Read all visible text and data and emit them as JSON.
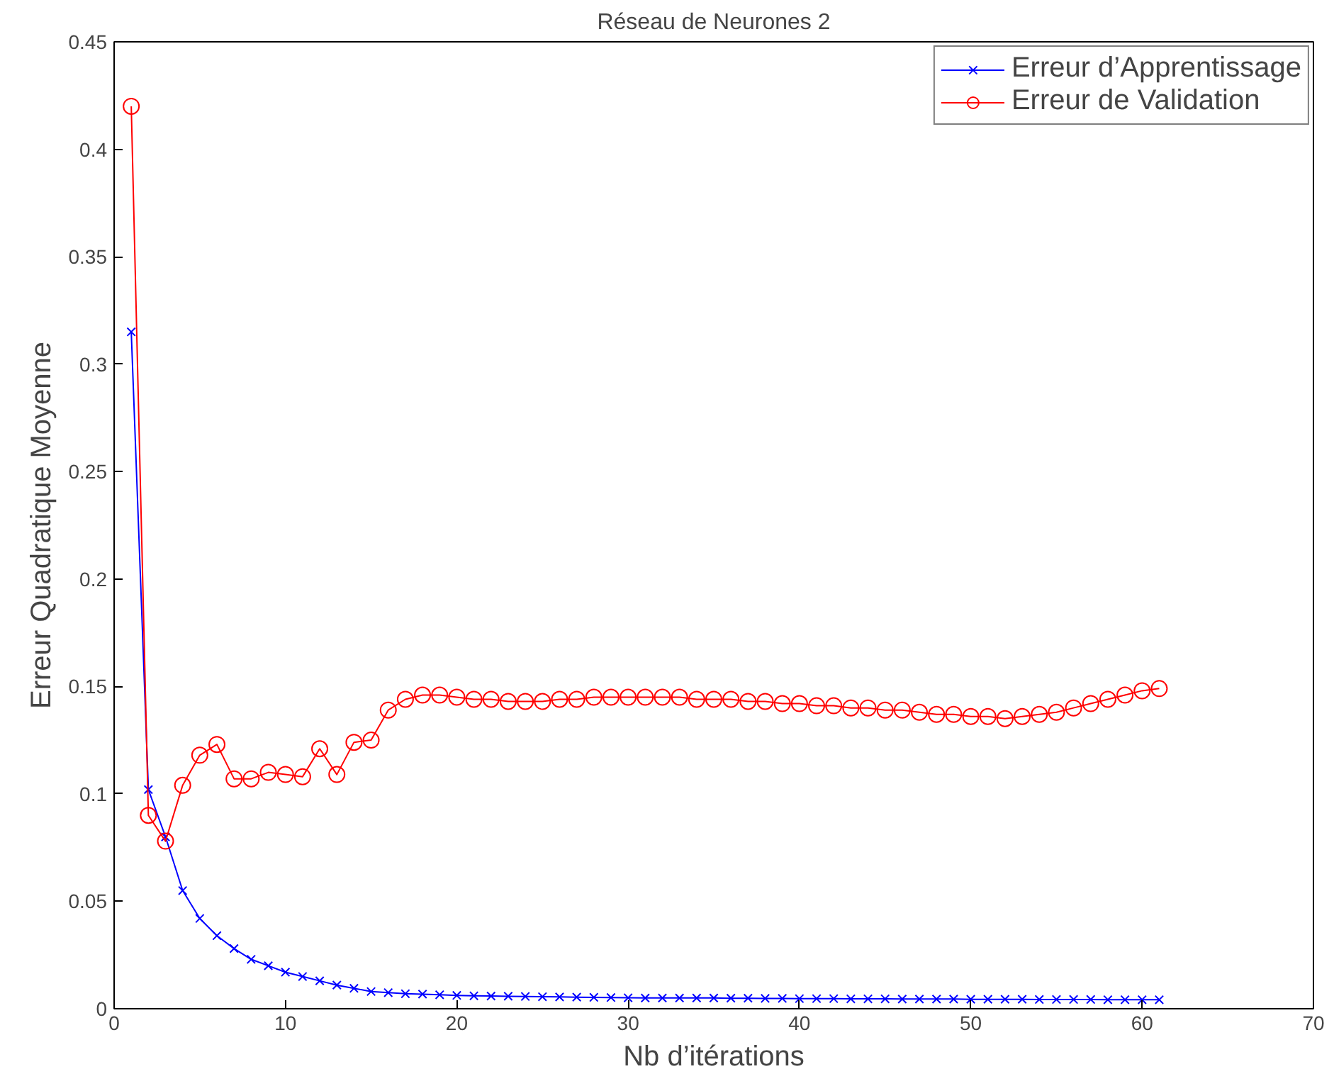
{
  "chart_data": {
    "type": "line",
    "title": "Réseau de Neurones 2",
    "xlabel": "Nb d’itérations",
    "ylabel": "Erreur Quadratique Moyenne",
    "x": [
      1,
      2,
      3,
      4,
      5,
      6,
      7,
      8,
      9,
      10,
      11,
      12,
      13,
      14,
      15,
      16,
      17,
      18,
      19,
      20,
      21,
      22,
      23,
      24,
      25,
      26,
      27,
      28,
      29,
      30,
      31,
      32,
      33,
      34,
      35,
      36,
      37,
      38,
      39,
      40,
      41,
      42,
      43,
      44,
      45,
      46,
      47,
      48,
      49,
      50,
      51,
      52,
      53,
      54,
      55,
      56,
      57,
      58,
      59,
      60,
      61
    ],
    "series": [
      {
        "name": "Erreur d’Apprentissage",
        "color": "#0000ff",
        "marker": "cross",
        "values": [
          0.315,
          0.102,
          0.08,
          0.055,
          0.042,
          0.034,
          0.028,
          0.023,
          0.02,
          0.017,
          0.015,
          0.013,
          0.011,
          0.0095,
          0.008,
          0.0075,
          0.007,
          0.0068,
          0.0065,
          0.0062,
          0.006,
          0.0059,
          0.0058,
          0.0057,
          0.0056,
          0.0055,
          0.0054,
          0.0053,
          0.0052,
          0.0051,
          0.005,
          0.005,
          0.005,
          0.005,
          0.005,
          0.0049,
          0.0049,
          0.0048,
          0.0048,
          0.0047,
          0.0047,
          0.0047,
          0.0046,
          0.0046,
          0.0046,
          0.0045,
          0.0045,
          0.0045,
          0.0045,
          0.0044,
          0.0044,
          0.0044,
          0.0044,
          0.0043,
          0.0043,
          0.0043,
          0.0043,
          0.0042,
          0.0042,
          0.0042,
          0.0042
        ]
      },
      {
        "name": "Erreur de Validation",
        "color": "#ff0000",
        "marker": "circle",
        "values": [
          0.42,
          0.09,
          0.078,
          0.104,
          0.118,
          0.123,
          0.107,
          0.107,
          0.11,
          0.109,
          0.108,
          0.121,
          0.109,
          0.124,
          0.125,
          0.139,
          0.144,
          0.146,
          0.146,
          0.145,
          0.144,
          0.144,
          0.143,
          0.143,
          0.143,
          0.144,
          0.144,
          0.145,
          0.145,
          0.145,
          0.145,
          0.145,
          0.145,
          0.144,
          0.144,
          0.144,
          0.143,
          0.143,
          0.142,
          0.142,
          0.141,
          0.141,
          0.14,
          0.14,
          0.139,
          0.139,
          0.138,
          0.137,
          0.137,
          0.136,
          0.136,
          0.135,
          0.136,
          0.137,
          0.138,
          0.14,
          0.142,
          0.144,
          0.146,
          0.148,
          0.149
        ]
      }
    ],
    "xlim": [
      0,
      70
    ],
    "xticks": [
      0,
      10,
      20,
      30,
      40,
      50,
      60,
      70
    ],
    "ylim": [
      0,
      0.45
    ],
    "yticks": [
      0,
      0.05,
      0.1,
      0.15,
      0.2,
      0.25,
      0.3,
      0.35,
      0.4,
      0.45
    ],
    "grid": false,
    "legend": "top right"
  }
}
